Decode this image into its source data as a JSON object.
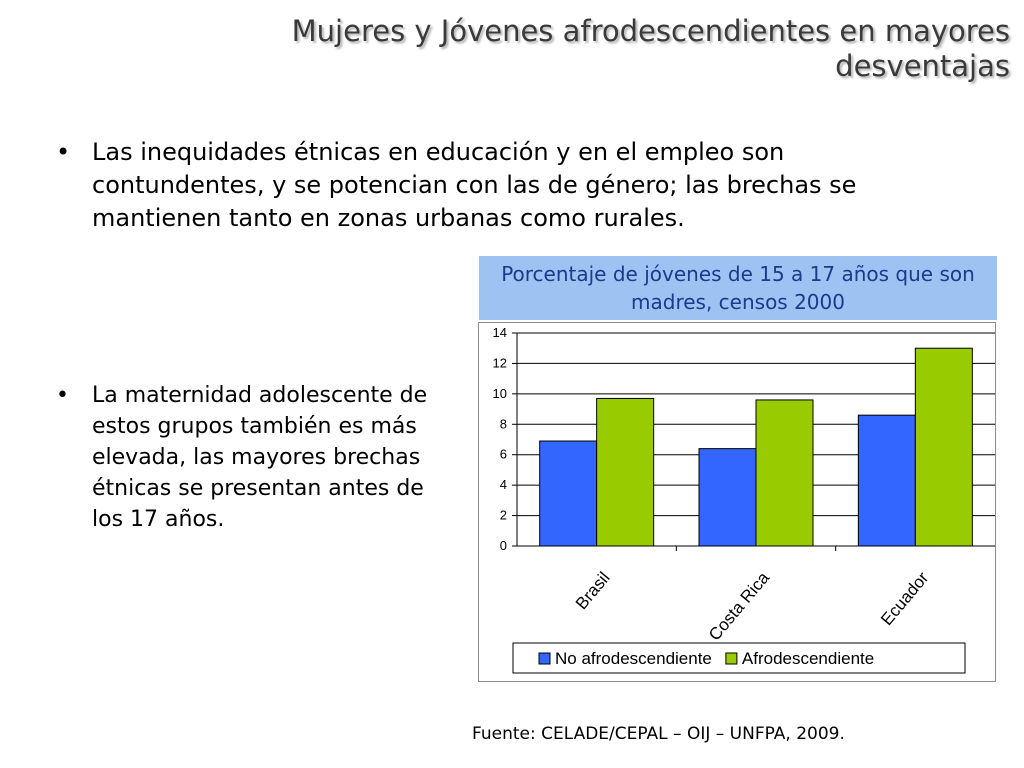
{
  "title": "Mujeres y Jóvenes afrodescendientes en mayores desventajas",
  "bullets": [
    "Las inequidades étnicas en educación y en el empleo son contundentes, y se potencian con las de género; las brechas se mantienen tanto en zonas urbanas como rurales.",
    "La maternidad adolescente de estos grupos también es más elevada, las mayores brechas étnicas se presentan antes de los 17 años."
  ],
  "bullet_symbol": "•",
  "chart_data": {
    "type": "bar",
    "title": "Porcentaje de jóvenes de 15 a 17 años que son madres,  censos 2000",
    "categories": [
      "Brasil",
      "Costa Rica",
      "Ecuador"
    ],
    "series": [
      {
        "name": "No afrodescendiente",
        "values": [
          6.9,
          6.4,
          8.6
        ],
        "color": "#3366ff"
      },
      {
        "name": "Afrodescendiente",
        "values": [
          9.7,
          9.6,
          13.0
        ],
        "color": "#99cc00"
      }
    ],
    "ylim": [
      0,
      14
    ],
    "yticks": [
      0,
      2,
      4,
      6,
      8,
      10,
      12,
      14
    ],
    "grid": true,
    "legend_position": "bottom",
    "title_background": "#9dc3f2",
    "title_color": "#1a3b8c"
  },
  "source": "Fuente: CELADE/CEPAL – OIJ – UNFPA, 2009."
}
